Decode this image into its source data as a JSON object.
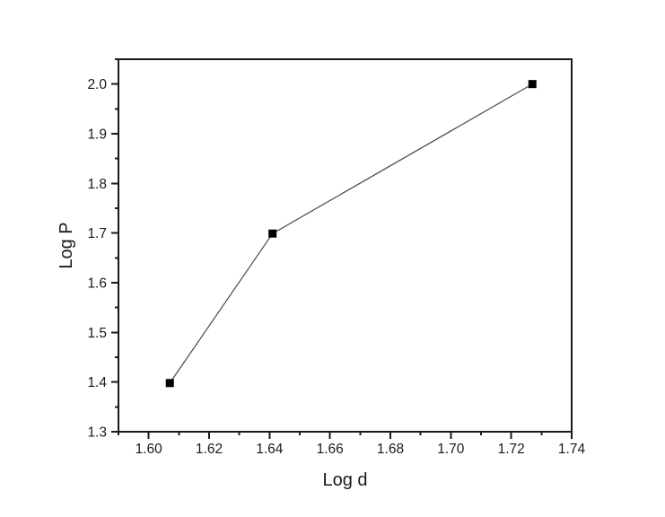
{
  "figure": {
    "background": "#ffffff"
  },
  "chart_data": {
    "type": "line",
    "title": "",
    "xlabel": "Log d",
    "ylabel": "Log P",
    "series": [
      {
        "x": [
          1.607,
          1.641,
          1.727
        ],
        "y": [
          1.398,
          1.699,
          2.0
        ]
      }
    ],
    "xlim": [
      1.59,
      1.74
    ],
    "ylim": [
      1.3,
      2.05
    ],
    "xticks": [
      1.6,
      1.62,
      1.64,
      1.66,
      1.68,
      1.7,
      1.72,
      1.74
    ],
    "xtick_labels": [
      "1.60",
      "1.62",
      "1.64",
      "1.66",
      "1.68",
      "1.70",
      "1.72",
      "1.74"
    ],
    "yticks": [
      1.3,
      1.4,
      1.5,
      1.6,
      1.7,
      1.8,
      1.9,
      2.0
    ],
    "ytick_labels": [
      "1.3",
      "1.4",
      "1.5",
      "1.6",
      "1.7",
      "1.8",
      "1.9",
      "2.0"
    ],
    "x_minor_step": 0.01,
    "y_minor_step": 0.05,
    "tick_direction": "out",
    "grid": false,
    "legend": null,
    "marker": "filled-square",
    "colors": {
      "marker": "#000000",
      "line": "#4a4a4a",
      "axis": "#1a1a1a",
      "text": "#1a1a1a",
      "background": "#ffffff"
    }
  }
}
